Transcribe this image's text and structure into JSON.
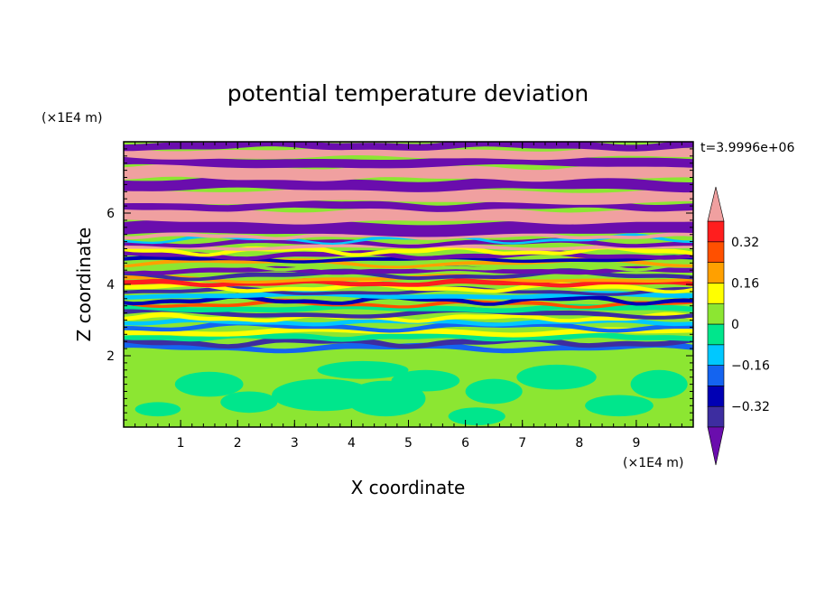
{
  "chart_data": {
    "type": "heatmap",
    "title": "potential temperature deviation",
    "xlabel": "X coordinate",
    "ylabel": "Z coordinate",
    "x_unit": "(×1E4 m)",
    "y_unit": "(×1E4 m)",
    "time_label": "t=3.9996e+06",
    "xlim": [
      0,
      10
    ],
    "ylim": [
      0,
      8
    ],
    "x_ticks": [
      "1",
      "2",
      "3",
      "4",
      "5",
      "6",
      "7",
      "8",
      "9"
    ],
    "y_ticks": [
      "2",
      "4",
      "6"
    ],
    "colorbar": {
      "labels": [
        "0.32",
        "0.16",
        "0",
        "−0.16",
        "−0.32"
      ],
      "label_values": [
        0.32,
        0.16,
        0,
        -0.16,
        -0.32
      ],
      "levels": [
        -0.4,
        -0.32,
        -0.24,
        -0.16,
        -0.08,
        0,
        0.08,
        0.16,
        0.24,
        0.32,
        0.4
      ],
      "colors_low_to_high": [
        "#6a0dad",
        "#3d2da0",
        "#0000b4",
        "#1464f0",
        "#00c8ff",
        "#00e68c",
        "#8ce632",
        "#ffff00",
        "#ffa000",
        "#ff5000",
        "#ff1e1e",
        "#f0a0a0"
      ],
      "extend": "both"
    },
    "regions": [
      {
        "z_range": [
          0,
          2
        ],
        "description": "lower layer: green / light green with small cyan-green blobs"
      },
      {
        "z_range": [
          2,
          5.4
        ],
        "description": "mixed banded layer: purple, blue, cyan, green, yellow, orange, red streaks"
      },
      {
        "z_range": [
          5.4,
          8
        ],
        "description": "upper layer: alternating pink and purple horizontal bands"
      }
    ]
  }
}
